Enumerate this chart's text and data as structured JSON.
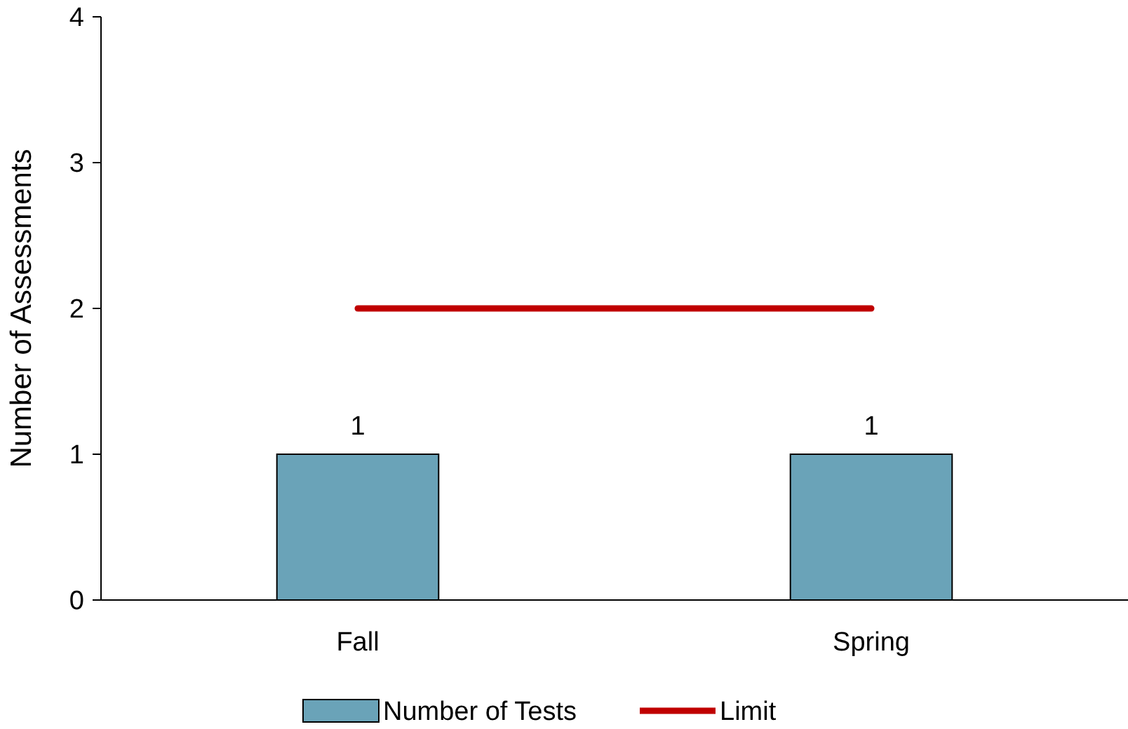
{
  "chart_data": {
    "type": "bar",
    "ylabel": "Number of Assessments",
    "categories": [
      "Fall",
      "Spring"
    ],
    "ylim": [
      0,
      4
    ],
    "yticks": [
      0,
      1,
      2,
      3,
      4
    ],
    "grid": false,
    "legend": "bottom",
    "series": [
      {
        "name": "Number of Tests",
        "color": "#6aa3b8",
        "values": [
          1,
          1
        ],
        "value_labels": [
          "1",
          "1"
        ]
      },
      {
        "name": "Limit",
        "type": "line",
        "color": "#c00000",
        "values": [
          2,
          2
        ]
      }
    ]
  }
}
